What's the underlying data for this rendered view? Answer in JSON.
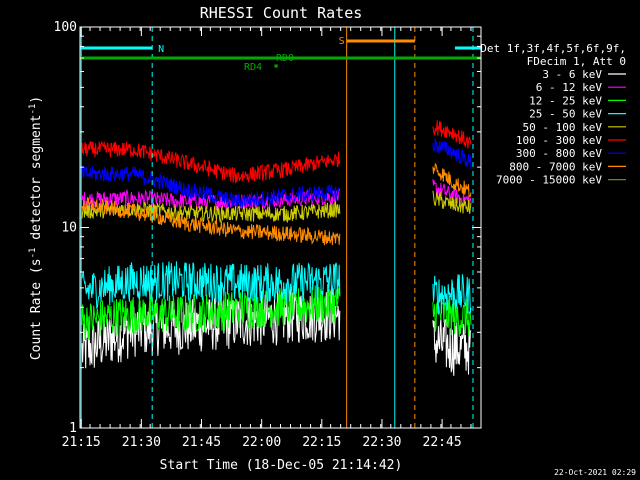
{
  "chart_data": {
    "type": "line",
    "title": "RHESSI Count Rates",
    "xlabel": "Start Time (18-Dec-05 21:14:42)",
    "ylabel": "Count Rate (s",
    "ylabel_sup": "-1",
    "ylabel_rest": " detector segment",
    "ylabel_sup2": "-1",
    "ylabel_close": ")",
    "yscale": "log",
    "ylim": [
      1,
      100
    ],
    "xlim_minutes": [
      0,
      100
    ],
    "x_unit": "minutes since 21:14:42",
    "x_ticks": [
      {
        "label": "21:15",
        "at": 0.3
      },
      {
        "label": "21:30",
        "at": 15.3
      },
      {
        "label": "21:45",
        "at": 30.3
      },
      {
        "label": "22:00",
        "at": 45.3
      },
      {
        "label": "22:15",
        "at": 60.3
      },
      {
        "label": "22:30",
        "at": 75.3
      },
      {
        "label": "22:45",
        "at": 90.3
      }
    ],
    "y_ticks": [
      {
        "label": "1",
        "value": 1
      },
      {
        "label": "10",
        "value": 10
      },
      {
        "label": "100",
        "value": 100
      }
    ],
    "legend_header": [
      "Det 1f,3f,4f,5f,6f,9f,",
      "FDecim 1, Att 0"
    ],
    "legend_position": "right",
    "timestamp": "22-Oct-2021 02:29",
    "annotations": {
      "N": "N",
      "S": "S",
      "RD0": "RD0",
      "RD4": "RD4"
    },
    "markers": {
      "night_bars": [
        [
          0,
          18
        ],
        [
          93.5,
          100
        ]
      ],
      "N_x": 18,
      "saa_bar": [
        66.5,
        83.5
      ],
      "S_x": 65,
      "flag_bar_green": [
        0,
        100
      ],
      "rd4_bar": [
        48.5,
        49.3
      ],
      "cyan_solid": [
        0.3,
        78.5
      ],
      "cyan_dashed": [
        18.0,
        98.0
      ],
      "orange_solid": [
        66.5
      ],
      "orange_dashed": [
        83.5
      ]
    },
    "data_gap": [
      65.5,
      86.5
    ],
    "series": [
      {
        "name": "3 - 6 keV",
        "color": "#ffffff",
        "seg1": [
          2.4,
          3.1,
          3.2,
          3.4,
          3.6,
          3.7
        ],
        "seg2": [
          2.7,
          2.5,
          2.5
        ]
      },
      {
        "name": "6 - 12 keV",
        "color": "#ff00ff",
        "seg1": [
          13.8,
          14.0,
          13.5,
          13.5,
          13.8,
          14.3
        ],
        "seg2": [
          16.0,
          14.5,
          13.5
        ]
      },
      {
        "name": "12 - 25 keV",
        "color": "#00ff00",
        "seg1": [
          3.4,
          3.7,
          3.7,
          3.9,
          4.0,
          4.2
        ],
        "seg2": [
          3.8,
          3.6,
          3.5
        ]
      },
      {
        "name": "25 - 50 keV",
        "color": "#00ffff",
        "seg1": [
          4.8,
          5.4,
          5.4,
          5.3,
          5.3,
          5.5
        ],
        "seg2": [
          4.6,
          4.7,
          4.6
        ]
      },
      {
        "name": "50 - 100 keV",
        "color": "#cccc00",
        "seg1": [
          12.0,
          12.4,
          11.8,
          11.7,
          11.7,
          12.3
        ],
        "seg2": [
          14.0,
          13.0,
          12.5
        ]
      },
      {
        "name": "100 - 300 keV",
        "color": "#ff0000",
        "seg1": [
          24.5,
          24.5,
          21.0,
          18.0,
          19.5,
          22.0
        ],
        "seg2": [
          32.0,
          30.0,
          26.0
        ]
      },
      {
        "name": "300 - 800 keV",
        "color": "#0000ff",
        "seg1": [
          18.5,
          18.5,
          15.5,
          13.5,
          14.5,
          15.0
        ],
        "seg2": [
          26.0,
          24.0,
          21.0
        ]
      },
      {
        "name": "800 - 7000 keV",
        "color": "#ff8c00",
        "seg1": [
          13.0,
          12.0,
          10.5,
          9.6,
          9.3,
          8.8
        ],
        "seg2": [
          20.0,
          17.0,
          15.0
        ]
      },
      {
        "name": "7000 - 15000 keV",
        "color": "#808000",
        "seg1": [],
        "seg2": []
      }
    ]
  }
}
